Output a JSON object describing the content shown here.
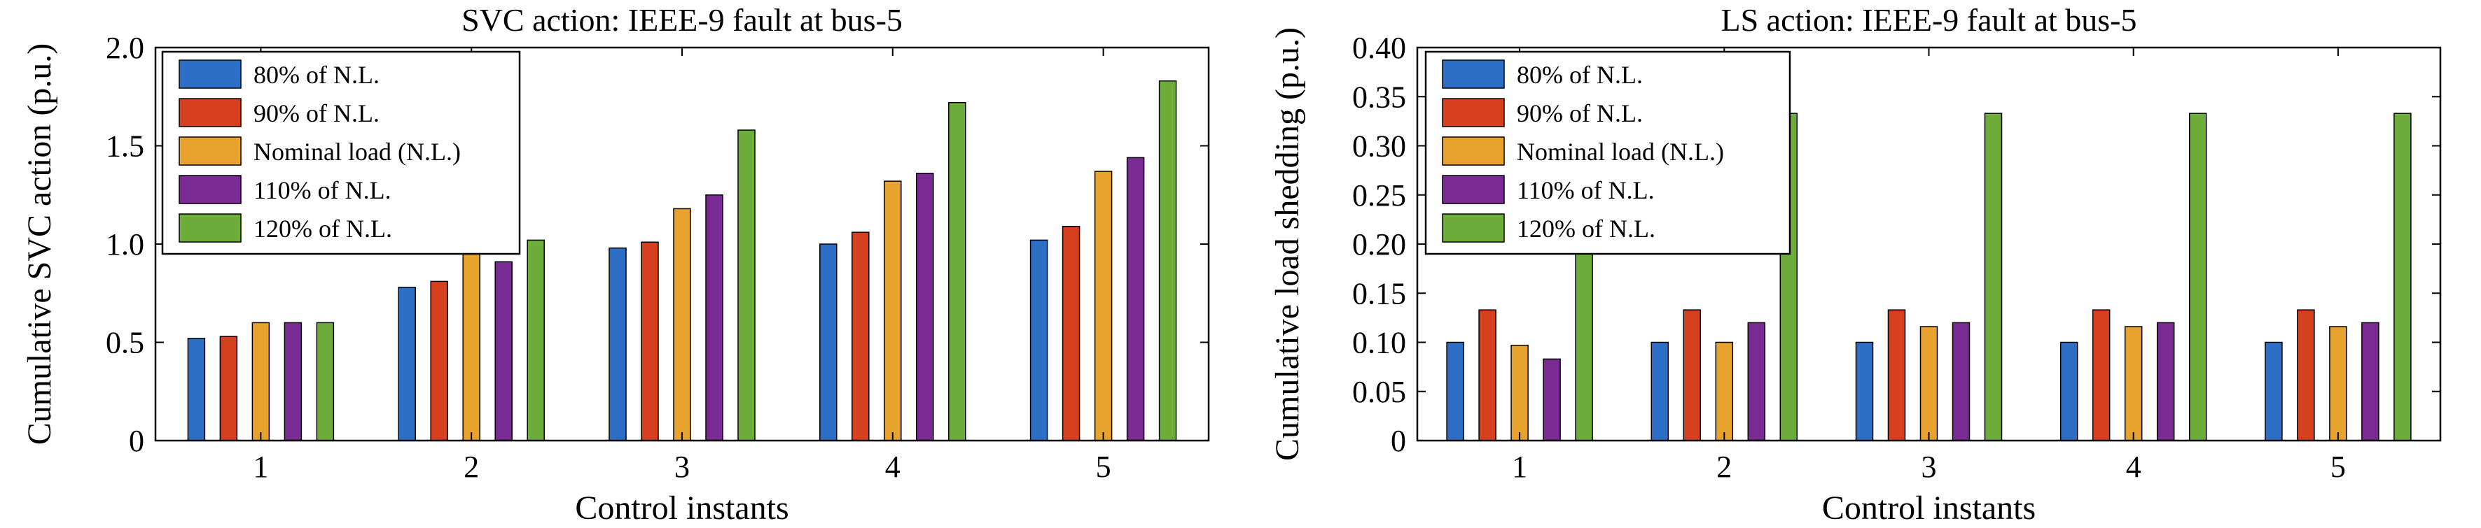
{
  "colors": [
    "#2e6fc6",
    "#d6401e",
    "#e8a22e",
    "#7a2a93",
    "#6fad3a"
  ],
  "chart_data": [
    {
      "type": "bar",
      "title": "SVC action: IEEE-9 fault at bus-5",
      "xlabel": "Control instants",
      "ylabel": "Cumulative SVC action (p.u.)",
      "categories": [
        "1",
        "2",
        "3",
        "4",
        "5"
      ],
      "ylim": [
        0,
        2.0
      ],
      "yticks": [
        0,
        0.5,
        1.0,
        1.5,
        2.0
      ],
      "ytick_labels": [
        "0",
        "0.5",
        "1.0",
        "1.5",
        "2.0"
      ],
      "legend_position": "top-left",
      "series": [
        {
          "name": "80% of N.L.",
          "values": [
            0.52,
            0.78,
            0.98,
            1.0,
            1.02
          ]
        },
        {
          "name": "90% of N.L.",
          "values": [
            0.53,
            0.81,
            1.01,
            1.06,
            1.09
          ]
        },
        {
          "name": "Nominal load (N.L.)",
          "values": [
            0.6,
            0.98,
            1.18,
            1.32,
            1.37
          ]
        },
        {
          "name": "110% of N.L.",
          "values": [
            0.6,
            0.91,
            1.25,
            1.36,
            1.44
          ]
        },
        {
          "name": "120% of N.L.",
          "values": [
            0.6,
            1.02,
            1.58,
            1.72,
            1.83
          ]
        }
      ]
    },
    {
      "type": "bar",
      "title": "LS action: IEEE-9 fault at bus-5",
      "xlabel": "Control instants",
      "ylabel": "Cumulative load shedding (p.u.)",
      "categories": [
        "1",
        "2",
        "3",
        "4",
        "5"
      ],
      "ylim": [
        0,
        0.4
      ],
      "yticks": [
        0,
        0.05,
        0.1,
        0.15,
        0.2,
        0.25,
        0.3,
        0.35,
        0.4
      ],
      "ytick_labels": [
        "0",
        "0.05",
        "0.10",
        "0.15",
        "0.20",
        "0.25",
        "0.30",
        "0.35",
        "0.40"
      ],
      "legend_position": "top-left",
      "series": [
        {
          "name": "80% of N.L.",
          "values": [
            0.1,
            0.1,
            0.1,
            0.1,
            0.1
          ]
        },
        {
          "name": "90% of N.L.",
          "values": [
            0.133,
            0.133,
            0.133,
            0.133,
            0.133
          ]
        },
        {
          "name": "Nominal load (N.L.)",
          "values": [
            0.097,
            0.1,
            0.116,
            0.116,
            0.116
          ]
        },
        {
          "name": "110% of N.L.",
          "values": [
            0.083,
            0.12,
            0.12,
            0.12,
            0.12
          ]
        },
        {
          "name": "120% of N.L.",
          "values": [
            0.2,
            0.333,
            0.333,
            0.333,
            0.333
          ]
        }
      ]
    }
  ]
}
